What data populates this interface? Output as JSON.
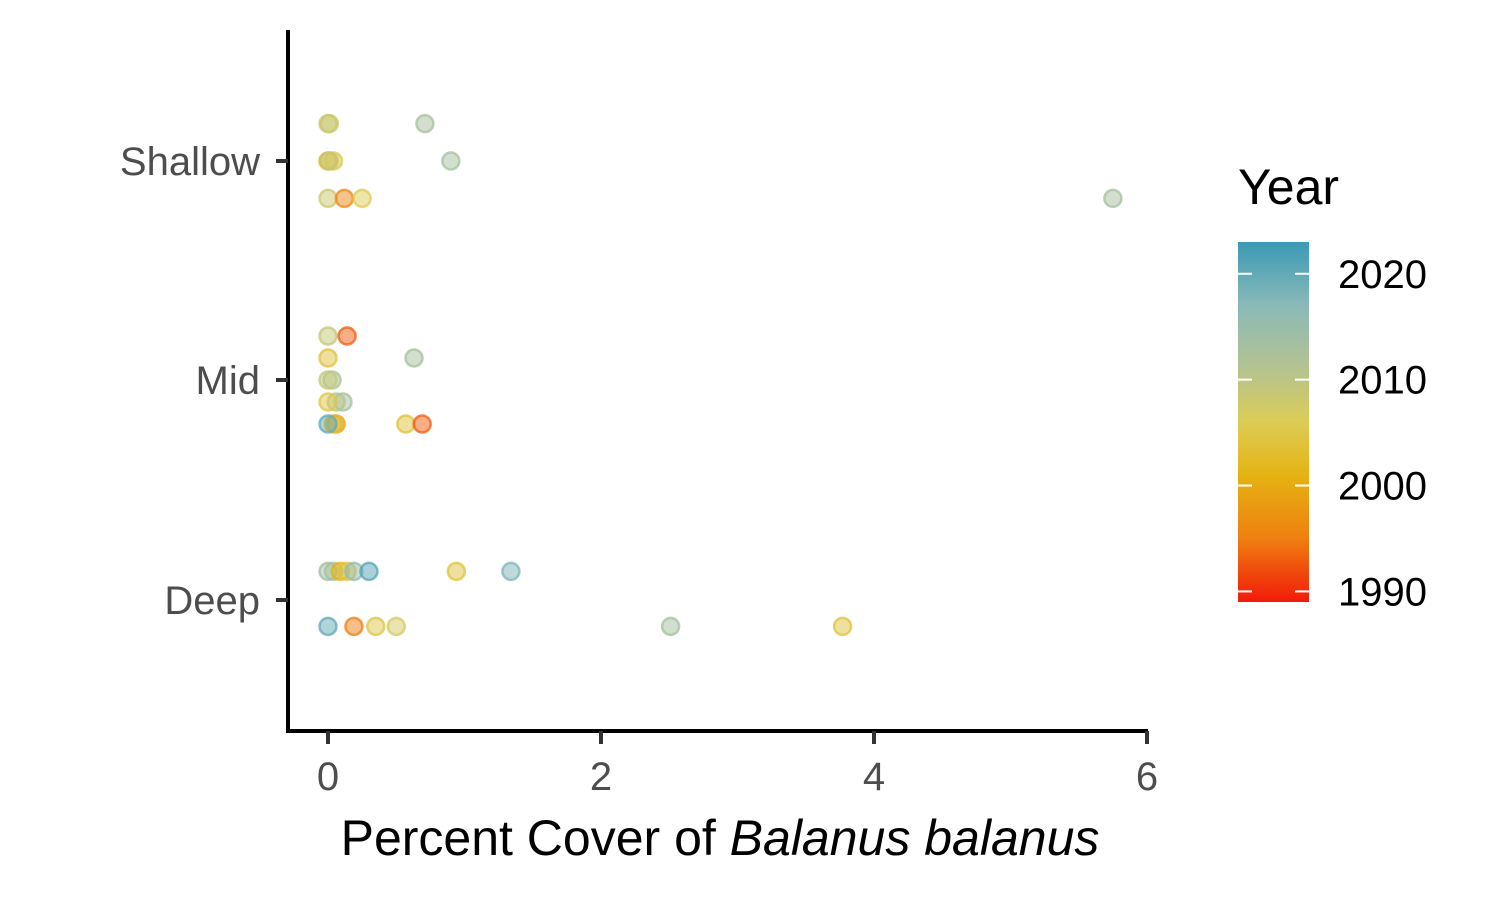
{
  "chart_data": {
    "type": "scatter",
    "title": "",
    "xlabel_prefix": "Percent Cover of ",
    "xlabel_italic": "Balanus balanus",
    "ylabel": "",
    "x_ticks": [
      "0",
      "2",
      "4",
      "6"
    ],
    "x_tick_values": [
      0,
      2,
      4,
      6
    ],
    "xlim": [
      -0.3,
      6.05
    ],
    "categories": [
      "Deep",
      "Mid",
      "Shallow"
    ],
    "y_tick_labels": [
      "Shallow",
      "Mid",
      "Deep"
    ],
    "legend": {
      "title": "Year",
      "labels": [
        "2020",
        "2010",
        "2000",
        "1990"
      ],
      "values": [
        2020,
        2010,
        2000,
        1990
      ],
      "range": [
        1989,
        2023
      ],
      "color_stops": [
        {
          "year": 1989,
          "color": "#f21a0a"
        },
        {
          "year": 1995,
          "color": "#ef7f10"
        },
        {
          "year": 2001,
          "color": "#e5b313"
        },
        {
          "year": 2006,
          "color": "#dccc55"
        },
        {
          "year": 2011,
          "color": "#b4c390"
        },
        {
          "year": 2017,
          "color": "#8ab9b8"
        },
        {
          "year": 2023,
          "color": "#3a9ab5"
        }
      ]
    },
    "points": [
      {
        "category": "Shallow",
        "x": 0.0,
        "jitter": 0.17,
        "year": 2009
      },
      {
        "category": "Shallow",
        "x": 0.01,
        "jitter": 0.17,
        "year": 2008
      },
      {
        "category": "Shallow",
        "x": 0.71,
        "jitter": 0.17,
        "year": 2013
      },
      {
        "category": "Shallow",
        "x": 0.0,
        "jitter": 0.0,
        "year": 2000
      },
      {
        "category": "Shallow",
        "x": 0.04,
        "jitter": 0.0,
        "year": 2005
      },
      {
        "category": "Shallow",
        "x": 0.01,
        "jitter": 0.0,
        "year": 2009
      },
      {
        "category": "Shallow",
        "x": 0.9,
        "jitter": 0.0,
        "year": 2013
      },
      {
        "category": "Shallow",
        "x": 0.0,
        "jitter": -0.17,
        "year": 2008
      },
      {
        "category": "Shallow",
        "x": 0.12,
        "jitter": -0.17,
        "year": 1996
      },
      {
        "category": "Shallow",
        "x": 0.25,
        "jitter": -0.17,
        "year": 2006
      },
      {
        "category": "Shallow",
        "x": 5.75,
        "jitter": -0.17,
        "year": 2013
      },
      {
        "category": "Mid",
        "x": 0.0,
        "jitter": 0.2,
        "year": 2009
      },
      {
        "category": "Mid",
        "x": 0.14,
        "jitter": 0.2,
        "year": 1993
      },
      {
        "category": "Mid",
        "x": 0.0,
        "jitter": 0.1,
        "year": 2004
      },
      {
        "category": "Mid",
        "x": 0.63,
        "jitter": 0.1,
        "year": 2013
      },
      {
        "category": "Mid",
        "x": 0.03,
        "jitter": 0.0,
        "year": 2012
      },
      {
        "category": "Mid",
        "x": 0.0,
        "jitter": 0.0,
        "year": 2009
      },
      {
        "category": "Mid",
        "x": 0.11,
        "jitter": -0.1,
        "year": 2013
      },
      {
        "category": "Mid",
        "x": 0.06,
        "jitter": -0.1,
        "year": 2011
      },
      {
        "category": "Mid",
        "x": 0.0,
        "jitter": -0.1,
        "year": 2005
      },
      {
        "category": "Mid",
        "x": 0.06,
        "jitter": -0.2,
        "year": 1999
      },
      {
        "category": "Mid",
        "x": 0.04,
        "jitter": -0.2,
        "year": 2002
      },
      {
        "category": "Mid",
        "x": 0.0,
        "jitter": -0.2,
        "year": 2020
      },
      {
        "category": "Mid",
        "x": 0.57,
        "jitter": -0.2,
        "year": 2004
      },
      {
        "category": "Mid",
        "x": 0.69,
        "jitter": -0.2,
        "year": 1993
      },
      {
        "category": "Deep",
        "x": 0.0,
        "jitter": 0.13,
        "year": 2014
      },
      {
        "category": "Deep",
        "x": 0.04,
        "jitter": 0.13,
        "year": 2013
      },
      {
        "category": "Deep",
        "x": 0.09,
        "jitter": 0.13,
        "year": 2001
      },
      {
        "category": "Deep",
        "x": 0.14,
        "jitter": 0.13,
        "year": 2004
      },
      {
        "category": "Deep",
        "x": 0.19,
        "jitter": 0.13,
        "year": 2016
      },
      {
        "category": "Deep",
        "x": 0.3,
        "jitter": 0.13,
        "year": 2021
      },
      {
        "category": "Deep",
        "x": 0.94,
        "jitter": 0.13,
        "year": 2004
      },
      {
        "category": "Deep",
        "x": 1.34,
        "jitter": 0.13,
        "year": 2018
      },
      {
        "category": "Deep",
        "x": 0.0,
        "jitter": -0.12,
        "year": 2020
      },
      {
        "category": "Deep",
        "x": 0.19,
        "jitter": -0.12,
        "year": 1995
      },
      {
        "category": "Deep",
        "x": 0.35,
        "jitter": -0.12,
        "year": 2005
      },
      {
        "category": "Deep",
        "x": 0.5,
        "jitter": -0.12,
        "year": 2007
      },
      {
        "category": "Deep",
        "x": 2.51,
        "jitter": -0.12,
        "year": 2013
      },
      {
        "category": "Deep",
        "x": 3.77,
        "jitter": -0.12,
        "year": 2004
      }
    ]
  }
}
